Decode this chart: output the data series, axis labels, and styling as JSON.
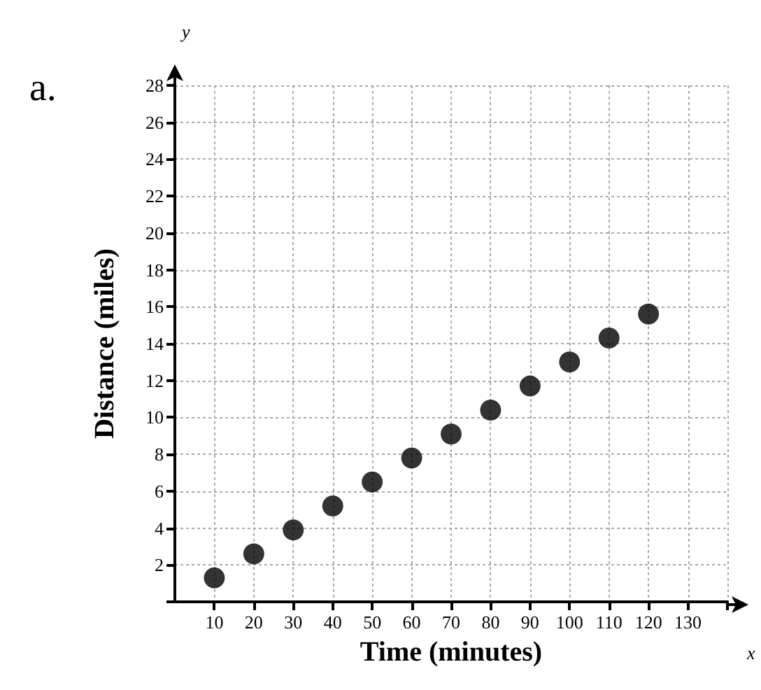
{
  "chart_data": {
    "type": "scatter",
    "title": "a.",
    "xlabel": "Time (minutes)",
    "ylabel": "Distance (miles)",
    "annotations": [
      "y",
      "x"
    ],
    "x": [
      10,
      20,
      30,
      40,
      50,
      60,
      70,
      80,
      90,
      100,
      110,
      120
    ],
    "series": [
      {
        "color": "#000000",
        "values": [
          1.3,
          2.6,
          3.9,
          5.2,
          6.5,
          7.8,
          9.1,
          10.4,
          11.7,
          13,
          14.3,
          15.6
        ]
      }
    ],
    "xlim": [
      0,
      140
    ],
    "xticks": [
      10,
      20,
      30,
      40,
      50,
      60,
      70,
      80,
      90,
      100,
      110,
      120,
      130,
      {
        "value": 140,
        "label": null
      }
    ],
    "ylim": [
      0,
      28
    ],
    "yticks": [
      2,
      4,
      6,
      8,
      10,
      12,
      14,
      16,
      18,
      20,
      22,
      24,
      26,
      28
    ],
    "grid": true,
    "marker": "circle"
  }
}
